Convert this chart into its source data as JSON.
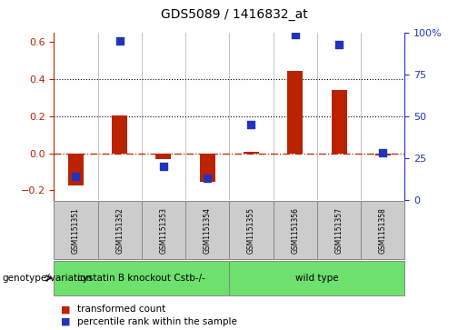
{
  "title": "GDS5089 / 1416832_at",
  "samples": [
    "GSM1151351",
    "GSM1151352",
    "GSM1151353",
    "GSM1151354",
    "GSM1151355",
    "GSM1151356",
    "GSM1151357",
    "GSM1151358"
  ],
  "transformed_count": [
    -0.175,
    0.205,
    -0.03,
    -0.155,
    0.01,
    0.445,
    0.34,
    -0.01
  ],
  "percentile_rank": [
    14,
    95,
    20,
    13,
    45,
    99,
    93,
    28
  ],
  "group_boundary": 4,
  "group1_label": "cystatin B knockout Cstb-/-",
  "group2_label": "wild type",
  "group_color": "#6de06d",
  "ylim_left": [
    -0.25,
    0.65
  ],
  "ylim_right": [
    0,
    100
  ],
  "yticks_left": [
    -0.2,
    0.0,
    0.2,
    0.4,
    0.6
  ],
  "yticks_right": [
    0,
    25,
    50,
    75,
    100
  ],
  "bar_color": "#bb2200",
  "dot_color": "#2233bb",
  "dot_size": 35,
  "dotted_lines": [
    0.2,
    0.4
  ],
  "hline_color": "#bb2200",
  "background_color": "#ffffff",
  "sample_box_color": "#cccccc",
  "genotype_label": "genotype/variation",
  "legend_bar_label": "transformed count",
  "legend_dot_label": "percentile rank within the sample",
  "title_fontsize": 10,
  "tick_fontsize": 8,
  "legend_fontsize": 7.5,
  "sample_fontsize": 5.5,
  "group_fontsize": 7.5,
  "genotype_fontsize": 7.5
}
